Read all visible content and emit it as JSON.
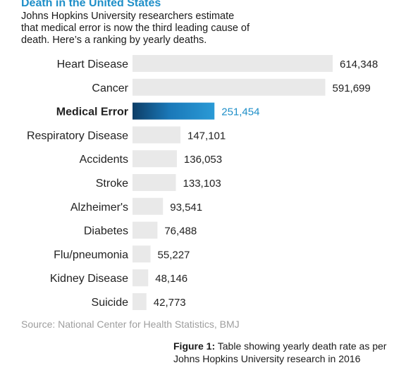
{
  "header": {
    "title": "Death in the United States",
    "subtitle": "Johns Hopkins University researchers estimate that medical error is now the third leading cause of death. Here’s a ranking by yearly deaths."
  },
  "chart_data": {
    "type": "bar",
    "orientation": "horizontal",
    "categories": [
      "Heart Disease",
      "Cancer",
      "Medical Error",
      "Respiratory Disease",
      "Accidents",
      "Stroke",
      "Alzheimer's",
      "Diabetes",
      "Flu/pneumonia",
      "Kidney Disease",
      "Suicide"
    ],
    "values": [
      614348,
      591699,
      251454,
      147101,
      136053,
      133103,
      93541,
      76488,
      55227,
      48146,
      42773
    ],
    "value_labels": [
      "614,348",
      "591,699",
      "251,454",
      "147,101",
      "136,053",
      "133,103",
      "93,541",
      "76,488",
      "55,227",
      "48,146",
      "42,773"
    ],
    "highlight": "Medical Error",
    "colors": {
      "bar": "#e9e9e9",
      "highlight": "#1f8fc8",
      "highlight_label": "#1f8fc8",
      "text": "#222222"
    },
    "grid": false,
    "legend": false
  },
  "footer": {
    "source": "Source: National Center for Health Statistics, BMJ",
    "caption_bold": "Figure 1:",
    "caption_text": " Table showing yearly death rate as per Johns Hopkins University research in 2016"
  }
}
